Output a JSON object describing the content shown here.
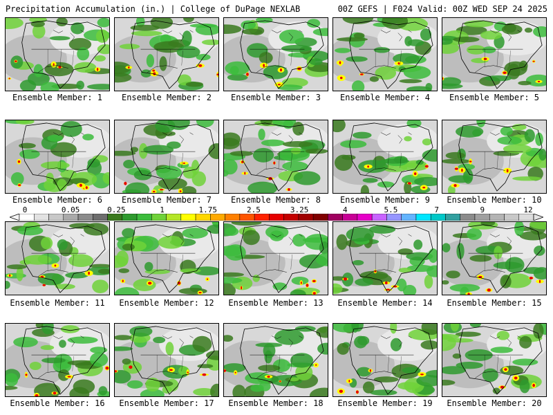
{
  "header": {
    "title_left": "Precipitation Accumulation (in.) | College of DuPage NEXLAB",
    "title_right": "00Z GEFS | F024 Valid: 00Z WED SEP 24 2025"
  },
  "panels": [
    {
      "label": "Ensemble Member: 1"
    },
    {
      "label": "Ensemble Member: 2"
    },
    {
      "label": "Ensemble Member: 3"
    },
    {
      "label": "Ensemble Member: 4"
    },
    {
      "label": "Ensemble Member: 5"
    },
    {
      "label": "Ensemble Member: 6"
    },
    {
      "label": "Ensemble Member: 7"
    },
    {
      "label": "Ensemble Member: 8"
    },
    {
      "label": "Ensemble Member: 9"
    },
    {
      "label": "Ensemble Member: 10"
    },
    {
      "label": "Ensemble Member: 11"
    },
    {
      "label": "Ensemble Member: 12"
    },
    {
      "label": "Ensemble Member: 13"
    },
    {
      "label": "Ensemble Member: 14"
    },
    {
      "label": "Ensemble Member: 15"
    },
    {
      "label": "Ensemble Member: 16"
    },
    {
      "label": "Ensemble Member: 17"
    },
    {
      "label": "Ensemble Member: 18"
    },
    {
      "label": "Ensemble Member: 19"
    },
    {
      "label": "Ensemble Member: 20"
    }
  ],
  "colorbar": {
    "labels": [
      "0",
      "0.05",
      "0.25",
      "1",
      "1.75",
      "2.5",
      "3.25",
      "4",
      "5.5",
      "7",
      "9",
      "12"
    ],
    "colors": [
      "#ffffff",
      "#e2e2e2",
      "#c8c8c8",
      "#aaaaaa",
      "#8c8c8c",
      "#6e6e6e",
      "#3a7a1e",
      "#2e9a2e",
      "#3cbc3c",
      "#70d23a",
      "#b4e628",
      "#ffff00",
      "#ffd700",
      "#ffaa00",
      "#ff8000",
      "#ff5500",
      "#ff2200",
      "#e60000",
      "#c40000",
      "#a00000",
      "#800000",
      "#a00060",
      "#c80096",
      "#e600c8",
      "#c864ff",
      "#9696ff",
      "#64b4ff",
      "#00e6ff",
      "#00c8c8",
      "#32a0a0",
      "#8c8c8c",
      "#a0a0a0",
      "#b4b4b4",
      "#c8c8c8",
      "#dcdcdc"
    ]
  }
}
